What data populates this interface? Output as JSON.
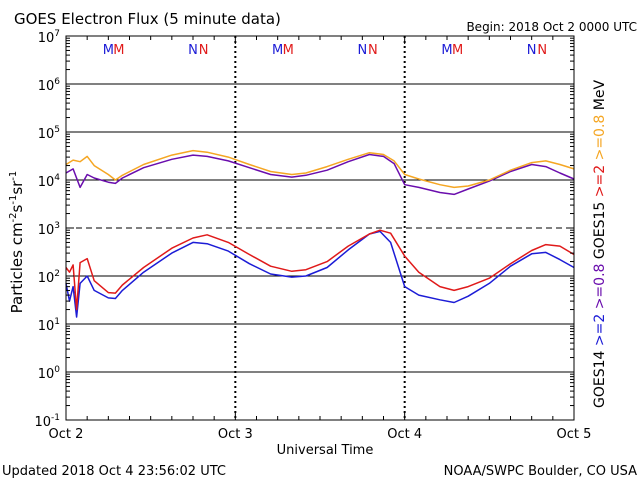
{
  "chart_data": {
    "type": "line",
    "title": "GOES Electron Flux (5 minute data)",
    "begin_label": "Begin: 2018 Oct 2 0000 UTC",
    "ylabel": "Particles cm",
    "ylabel_sup1": "-2",
    "ylabel_mid1": "s",
    "ylabel_sup2": "-1",
    "ylabel_mid2": "sr",
    "ylabel_sup3": "-1",
    "xlabel": "Universal Time",
    "y_scale": "log",
    "ylim": [
      0.1,
      10000000
    ],
    "y_ticks": [
      {
        "base": "10",
        "exp": "7",
        "value": 10000000
      },
      {
        "base": "10",
        "exp": "6",
        "value": 1000000
      },
      {
        "base": "10",
        "exp": "5",
        "value": 100000
      },
      {
        "base": "10",
        "exp": "4",
        "value": 10000
      },
      {
        "base": "10",
        "exp": "3",
        "value": 1000
      },
      {
        "base": "10",
        "exp": "2",
        "value": 100
      },
      {
        "base": "10",
        "exp": "1",
        "value": 10
      },
      {
        "base": "10",
        "exp": "0",
        "value": 1
      },
      {
        "base": "10",
        "exp": "-1",
        "value": 0.1
      }
    ],
    "xlim": [
      "2018-10-02",
      "2018-10-05"
    ],
    "x_ticks": [
      {
        "label": "Oct 2",
        "date": "2018-10-02"
      },
      {
        "label": "Oct 3",
        "date": "2018-10-03"
      },
      {
        "label": "Oct 4",
        "date": "2018-10-04"
      },
      {
        "label": "Oct 5",
        "date": "2018-10-05"
      }
    ],
    "hlines_solid": [
      1000000,
      100000,
      10000,
      100,
      10,
      1
    ],
    "hline_dashed": 1000,
    "day_markers": [
      {
        "text": "M",
        "color": "#1c1cd6",
        "x": "2018-10-02T06:00"
      },
      {
        "text": "M",
        "color": "#e01a1a",
        "x": "2018-10-02T07:30"
      },
      {
        "text": "N",
        "color": "#1c1cd6",
        "x": "2018-10-02T18:00"
      },
      {
        "text": "N",
        "color": "#e01a1a",
        "x": "2018-10-02T19:30"
      },
      {
        "text": "M",
        "color": "#1c1cd6",
        "x": "2018-10-03T06:00"
      },
      {
        "text": "M",
        "color": "#e01a1a",
        "x": "2018-10-03T07:30"
      },
      {
        "text": "N",
        "color": "#1c1cd6",
        "x": "2018-10-03T18:00"
      },
      {
        "text": "N",
        "color": "#e01a1a",
        "x": "2018-10-03T19:30"
      },
      {
        "text": "M",
        "color": "#1c1cd6",
        "x": "2018-10-04T06:00"
      },
      {
        "text": "M",
        "color": "#e01a1a",
        "x": "2018-10-04T07:30"
      },
      {
        "text": "N",
        "color": "#1c1cd6",
        "x": "2018-10-04T18:00"
      },
      {
        "text": "N",
        "color": "#e01a1a",
        "x": "2018-10-04T19:30"
      }
    ],
    "series": [
      {
        "name": ">=0.8 MeV",
        "legend_group": "GOES14",
        "color": "#6a0dad",
        "points": [
          [
            "2018-10-02T00:00",
            14000
          ],
          [
            "2018-10-02T01:00",
            17000
          ],
          [
            "2018-10-02T02:00",
            7000
          ],
          [
            "2018-10-02T03:00",
            13000
          ],
          [
            "2018-10-02T04:00",
            11000
          ],
          [
            "2018-10-02T06:00",
            9000
          ],
          [
            "2018-10-02T07:00",
            8500
          ],
          [
            "2018-10-02T08:00",
            11000
          ],
          [
            "2018-10-02T11:00",
            18000
          ],
          [
            "2018-10-02T15:00",
            27000
          ],
          [
            "2018-10-02T18:00",
            33000
          ],
          [
            "2018-10-02T20:00",
            31000
          ],
          [
            "2018-10-02T23:00",
            25000
          ],
          [
            "2018-10-03T02:00",
            18000
          ],
          [
            "2018-10-03T05:00",
            13000
          ],
          [
            "2018-10-03T08:00",
            11500
          ],
          [
            "2018-10-03T10:00",
            12500
          ],
          [
            "2018-10-03T13:00",
            16000
          ],
          [
            "2018-10-03T16:00",
            24000
          ],
          [
            "2018-10-03T19:00",
            34000
          ],
          [
            "2018-10-03T21:00",
            31000
          ],
          [
            "2018-10-03T22:30",
            22000
          ],
          [
            "2018-10-04T00:00",
            8000
          ],
          [
            "2018-10-04T02:00",
            7000
          ],
          [
            "2018-10-04T05:00",
            5500
          ],
          [
            "2018-10-04T07:00",
            5000
          ],
          [
            "2018-10-04T09:00",
            6500
          ],
          [
            "2018-10-04T12:00",
            9500
          ],
          [
            "2018-10-04T15:00",
            15000
          ],
          [
            "2018-10-04T18:00",
            21000
          ],
          [
            "2018-10-04T20:00",
            19000
          ],
          [
            "2018-10-04T22:00",
            14000
          ],
          [
            "2018-10-05T00:00",
            10500
          ]
        ]
      },
      {
        "name": ">=0.8 MeV",
        "legend_group": "GOES15",
        "color": "#f5a623",
        "points": [
          [
            "2018-10-02T00:00",
            21000
          ],
          [
            "2018-10-02T01:00",
            26000
          ],
          [
            "2018-10-02T02:00",
            24000
          ],
          [
            "2018-10-02T03:00",
            31000
          ],
          [
            "2018-10-02T04:00",
            20000
          ],
          [
            "2018-10-02T06:00",
            13000
          ],
          [
            "2018-10-02T07:00",
            10000
          ],
          [
            "2018-10-02T08:00",
            12500
          ],
          [
            "2018-10-02T11:00",
            21000
          ],
          [
            "2018-10-02T15:00",
            33000
          ],
          [
            "2018-10-02T18:00",
            41000
          ],
          [
            "2018-10-02T20:00",
            38000
          ],
          [
            "2018-10-02T23:00",
            30000
          ],
          [
            "2018-10-03T02:00",
            21000
          ],
          [
            "2018-10-03T05:00",
            15000
          ],
          [
            "2018-10-03T08:00",
            13000
          ],
          [
            "2018-10-03T10:00",
            14000
          ],
          [
            "2018-10-03T13:00",
            19000
          ],
          [
            "2018-10-03T16:00",
            27000
          ],
          [
            "2018-10-03T19:00",
            37000
          ],
          [
            "2018-10-03T21:00",
            34000
          ],
          [
            "2018-10-03T22:30",
            25000
          ],
          [
            "2018-10-04T00:00",
            13000
          ],
          [
            "2018-10-04T02:00",
            10500
          ],
          [
            "2018-10-04T05:00",
            8000
          ],
          [
            "2018-10-04T07:00",
            7000
          ],
          [
            "2018-10-04T09:00",
            7500
          ],
          [
            "2018-10-04T12:00",
            10000
          ],
          [
            "2018-10-04T15:00",
            16000
          ],
          [
            "2018-10-04T18:00",
            23000
          ],
          [
            "2018-10-04T20:00",
            25000
          ],
          [
            "2018-10-04T22:00",
            21000
          ],
          [
            "2018-10-05T00:00",
            17000
          ]
        ]
      },
      {
        "name": ">=2 MeV",
        "legend_group": "GOES14",
        "color": "#1c1cd6",
        "points": [
          [
            "2018-10-02T00:00",
            70
          ],
          [
            "2018-10-02T00:30",
            30
          ],
          [
            "2018-10-02T01:00",
            60
          ],
          [
            "2018-10-02T01:30",
            14
          ],
          [
            "2018-10-02T02:00",
            70
          ],
          [
            "2018-10-02T03:00",
            100
          ],
          [
            "2018-10-02T04:00",
            50
          ],
          [
            "2018-10-02T06:00",
            35
          ],
          [
            "2018-10-02T07:00",
            34
          ],
          [
            "2018-10-02T08:00",
            50
          ],
          [
            "2018-10-02T11:00",
            120
          ],
          [
            "2018-10-02T15:00",
            300
          ],
          [
            "2018-10-02T18:00",
            500
          ],
          [
            "2018-10-02T20:00",
            470
          ],
          [
            "2018-10-02T23:00",
            330
          ],
          [
            "2018-10-03T02:00",
            180
          ],
          [
            "2018-10-03T05:00",
            110
          ],
          [
            "2018-10-03T08:00",
            95
          ],
          [
            "2018-10-03T10:00",
            100
          ],
          [
            "2018-10-03T13:00",
            150
          ],
          [
            "2018-10-03T16:00",
            350
          ],
          [
            "2018-10-03T19:00",
            750
          ],
          [
            "2018-10-03T20:30",
            850
          ],
          [
            "2018-10-03T22:00",
            500
          ],
          [
            "2018-10-04T00:00",
            60
          ],
          [
            "2018-10-04T02:00",
            40
          ],
          [
            "2018-10-04T05:00",
            32
          ],
          [
            "2018-10-04T07:00",
            28
          ],
          [
            "2018-10-04T09:00",
            38
          ],
          [
            "2018-10-04T12:00",
            70
          ],
          [
            "2018-10-04T15:00",
            160
          ],
          [
            "2018-10-04T18:00",
            290
          ],
          [
            "2018-10-04T20:00",
            310
          ],
          [
            "2018-10-04T22:00",
            220
          ],
          [
            "2018-10-05T00:00",
            150
          ]
        ]
      },
      {
        "name": ">=2 MeV",
        "legend_group": "GOES15",
        "color": "#e01a1a",
        "points": [
          [
            "2018-10-02T00:00",
            150
          ],
          [
            "2018-10-02T00:30",
            120
          ],
          [
            "2018-10-02T01:00",
            170
          ],
          [
            "2018-10-02T01:30",
            20
          ],
          [
            "2018-10-02T02:00",
            190
          ],
          [
            "2018-10-02T03:00",
            230
          ],
          [
            "2018-10-02T04:00",
            80
          ],
          [
            "2018-10-02T06:00",
            45
          ],
          [
            "2018-10-02T07:00",
            44
          ],
          [
            "2018-10-02T08:00",
            65
          ],
          [
            "2018-10-02T11:00",
            150
          ],
          [
            "2018-10-02T15:00",
            380
          ],
          [
            "2018-10-02T18:00",
            620
          ],
          [
            "2018-10-02T20:00",
            720
          ],
          [
            "2018-10-02T23:00",
            500
          ],
          [
            "2018-10-03T02:00",
            280
          ],
          [
            "2018-10-03T05:00",
            160
          ],
          [
            "2018-10-03T08:00",
            125
          ],
          [
            "2018-10-03T10:00",
            135
          ],
          [
            "2018-10-03T13:00",
            200
          ],
          [
            "2018-10-03T16:00",
            420
          ],
          [
            "2018-10-03T19:00",
            750
          ],
          [
            "2018-10-03T20:30",
            900
          ],
          [
            "2018-10-03T22:00",
            780
          ],
          [
            "2018-10-04T00:00",
            260
          ],
          [
            "2018-10-04T02:00",
            120
          ],
          [
            "2018-10-04T05:00",
            60
          ],
          [
            "2018-10-04T07:00",
            50
          ],
          [
            "2018-10-04T09:00",
            60
          ],
          [
            "2018-10-04T12:00",
            90
          ],
          [
            "2018-10-04T15:00",
            180
          ],
          [
            "2018-10-04T18:00",
            340
          ],
          [
            "2018-10-04T20:00",
            450
          ],
          [
            "2018-10-04T22:00",
            420
          ],
          [
            "2018-10-05T00:00",
            280
          ]
        ]
      }
    ],
    "legend": [
      {
        "text": "GOES14",
        "color": "#000000"
      },
      {
        "text": ">=2",
        "color": "#1c1cd6"
      },
      {
        "text": ">=0.8",
        "color": "#6a0dad"
      },
      {
        "text": "GOES15",
        "color": "#000000"
      },
      {
        "text": ">=2",
        "color": "#e01a1a"
      },
      {
        "text": ">=0.8",
        "color": "#f5a623"
      },
      {
        "text": "MeV",
        "color": "#000000"
      }
    ]
  },
  "footer": {
    "updated": "Updated 2018 Oct  4 23:56:02 UTC",
    "credit": "NOAA/SWPC Boulder, CO USA"
  }
}
